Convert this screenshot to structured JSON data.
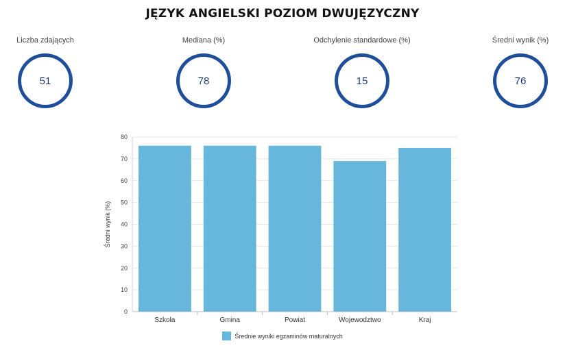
{
  "title": "JĘZYK ANGIELSKI POZIOM DWUJĘZYCZNY",
  "stats": [
    {
      "label": "Liczba zdających",
      "value": "51"
    },
    {
      "label": "Mediana (%)",
      "value": "78"
    },
    {
      "label": "Odchylenie standardowe (%)",
      "value": "15"
    },
    {
      "label": "Średni wynik (%)",
      "value": "76"
    }
  ],
  "colors": {
    "ring": "#1f4e9a",
    "bar": "#67b7dc",
    "grid": "#e6e6e6"
  },
  "chart_data": {
    "type": "bar",
    "categories": [
      "Szkoła",
      "Gmina",
      "Powiat",
      "Wojewodztwo",
      "Kraj"
    ],
    "series": [
      {
        "name": "Średnie wyniki egzaminów maturalnych",
        "values": [
          76,
          76,
          76,
          69,
          75
        ]
      }
    ],
    "xlabel": "",
    "ylabel": "Średni wynik (%)",
    "ylim": [
      0,
      80
    ],
    "yticks": [
      0,
      10,
      20,
      30,
      40,
      50,
      60,
      70,
      80
    ],
    "grid": true,
    "legend_position": "bottom"
  }
}
